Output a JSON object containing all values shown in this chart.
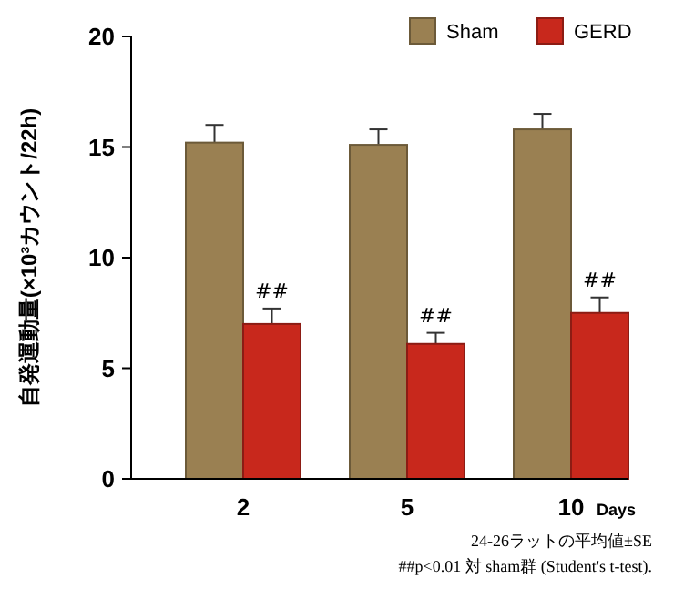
{
  "chart_data": {
    "type": "bar",
    "ylabel": "自発運動量(×10³カウント/22h)",
    "xlabel": "Days",
    "categories": [
      "2",
      "5",
      "10"
    ],
    "series": [
      {
        "name": "Sham",
        "color": "#9a8052",
        "values": [
          15.2,
          15.1,
          15.8
        ],
        "errors": [
          0.8,
          0.7,
          0.7
        ]
      },
      {
        "name": "GERD",
        "color": "#c8281c",
        "values": [
          7.0,
          6.1,
          7.5
        ],
        "errors": [
          0.7,
          0.5,
          0.7
        ]
      }
    ],
    "ylim": [
      0,
      20
    ],
    "yticks": [
      0,
      5,
      10,
      15,
      20
    ],
    "legend": "top right",
    "grid": false,
    "annotations": [
      {
        "text": "##",
        "x": "2",
        "y": 7.7
      },
      {
        "text": "##",
        "x": "5",
        "y": 6.6
      },
      {
        "text": "##",
        "x": "10",
        "y": 8.2
      },
      "24-26ラットの平均値±SE",
      "##p<0.01 対 sham群 (Student's t-test)."
    ]
  }
}
